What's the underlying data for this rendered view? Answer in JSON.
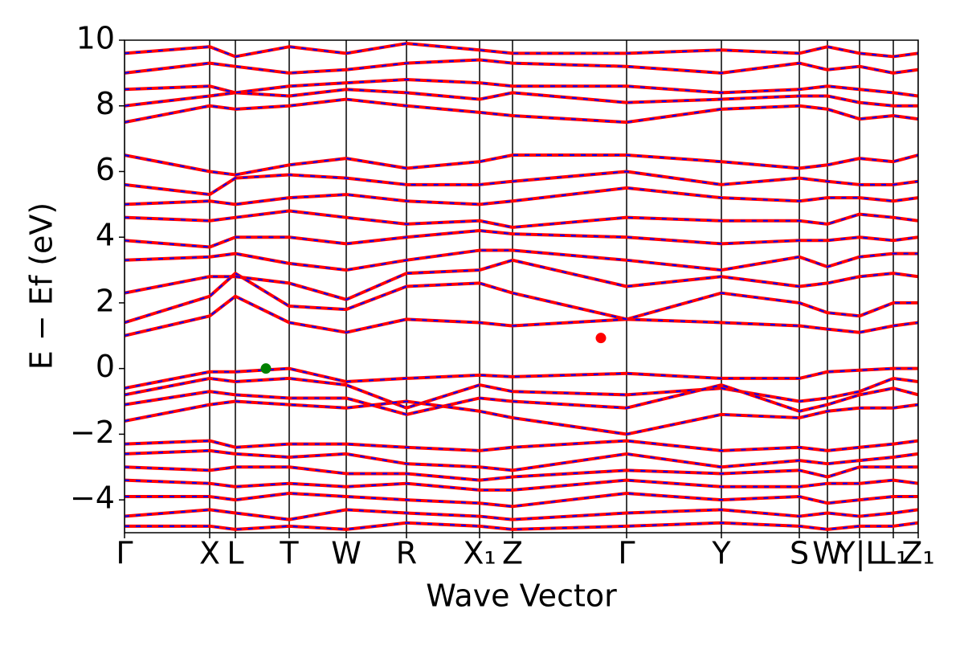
{
  "chart_data": {
    "type": "band_structure",
    "xlabel": "Wave Vector",
    "ylabel": "E − Ef (eV)",
    "xlim": [
      0,
      9.88
    ],
    "ylim": [
      -5,
      10
    ],
    "yticks": [
      {
        "value": -4,
        "label": "−4"
      },
      {
        "value": -2,
        "label": "−2"
      },
      0,
      2,
      4,
      6,
      8,
      10
    ],
    "xticks": [
      {
        "value": 0,
        "label": "Γ"
      },
      {
        "value": 1.06,
        "label": "X"
      },
      {
        "value": 1.38,
        "label": "L"
      },
      {
        "value": 2.05,
        "label": "T"
      },
      {
        "value": 2.76,
        "label": "W"
      },
      {
        "value": 3.51,
        "label": "R"
      },
      {
        "value": 4.42,
        "label": "X₁"
      },
      {
        "value": 4.83,
        "label": "Z"
      },
      {
        "value": 6.25,
        "label": "Γ"
      },
      {
        "value": 7.43,
        "label": "Y"
      },
      {
        "value": 8.4,
        "label": "S"
      },
      {
        "value": 8.75,
        "label": "W"
      },
      {
        "value": 9.15,
        "label": "Y|L"
      },
      {
        "value": 9.57,
        "label": "L₁"
      },
      {
        "value": 9.88,
        "label": "Z₁"
      }
    ],
    "line_color": "#ff0000",
    "dash_color": "#0000ff",
    "x": [
      0,
      1.06,
      1.38,
      2.05,
      2.76,
      3.51,
      4.42,
      4.83,
      6.25,
      7.43,
      8.4,
      8.75,
      9.15,
      9.57,
      9.88
    ],
    "bands": [
      [
        -0.6,
        -0.1,
        -0.1,
        0.0,
        -0.4,
        -0.3,
        -0.2,
        -0.25,
        -0.15,
        -0.3,
        -0.3,
        -0.1,
        -0.05,
        0,
        0
      ],
      [
        -0.8,
        -0.3,
        -0.4,
        -0.3,
        -0.5,
        -1.2,
        -0.5,
        -0.7,
        -0.8,
        -0.6,
        -1.0,
        -0.9,
        -0.7,
        -0.3,
        -0.4
      ],
      [
        -1.1,
        -0.7,
        -0.8,
        -0.9,
        -0.9,
        -1.4,
        -0.9,
        -1.0,
        -1.2,
        -0.5,
        -1.3,
        -1.1,
        -0.8,
        -0.6,
        -0.8
      ],
      [
        -1.6,
        -1.1,
        -1.0,
        -1.1,
        -1.2,
        -1.0,
        -1.3,
        -1.5,
        -2.0,
        -1.4,
        -1.5,
        -1.3,
        -1.2,
        -1.2,
        -1.1
      ],
      [
        -2.3,
        -2.2,
        -2.4,
        -2.3,
        -2.3,
        -2.4,
        -2.5,
        -2.4,
        -2.2,
        -2.5,
        -2.4,
        -2.5,
        -2.4,
        -2.3,
        -2.2
      ],
      [
        -2.6,
        -2.5,
        -2.6,
        -2.7,
        -2.6,
        -2.9,
        -3.0,
        -3.1,
        -2.6,
        -3.0,
        -2.8,
        -2.9,
        -2.8,
        -2.7,
        -2.6
      ],
      [
        -3.0,
        -3.1,
        -3.0,
        -3.0,
        -3.2,
        -3.2,
        -3.4,
        -3.3,
        -3.1,
        -3.2,
        -3.1,
        -3.3,
        -3.0,
        -3.0,
        -3.0
      ],
      [
        -3.4,
        -3.5,
        -3.6,
        -3.5,
        -3.6,
        -3.5,
        -3.7,
        -3.7,
        -3.4,
        -3.6,
        -3.6,
        -3.5,
        -3.5,
        -3.4,
        -3.5
      ],
      [
        -3.9,
        -3.9,
        -4.0,
        -3.8,
        -3.9,
        -4.0,
        -4.1,
        -4.2,
        -3.8,
        -4.0,
        -3.9,
        -4.1,
        -4.0,
        -3.9,
        -3.9
      ],
      [
        -4.5,
        -4.3,
        -4.4,
        -4.6,
        -4.3,
        -4.4,
        -4.5,
        -4.6,
        -4.4,
        -4.3,
        -4.5,
        -4.4,
        -4.5,
        -4.4,
        -4.3
      ],
      [
        -4.8,
        -4.8,
        -4.9,
        -4.8,
        -4.9,
        -4.7,
        -4.8,
        -4.9,
        -4.8,
        -4.7,
        -4.8,
        -4.9,
        -4.8,
        -4.8,
        -4.7
      ],
      [
        1.0,
        1.6,
        2.2,
        1.4,
        1.1,
        1.5,
        1.4,
        1.3,
        1.5,
        1.4,
        1.3,
        1.2,
        1.1,
        1.3,
        1.4
      ],
      [
        1.4,
        2.2,
        2.9,
        1.9,
        1.8,
        2.5,
        2.6,
        2.3,
        1.5,
        2.3,
        2.0,
        1.7,
        1.6,
        2.0,
        2.0
      ],
      [
        2.3,
        2.8,
        2.8,
        2.6,
        2.1,
        2.9,
        3.0,
        3.3,
        2.5,
        2.8,
        2.5,
        2.6,
        2.8,
        2.9,
        2.8
      ],
      [
        3.3,
        3.4,
        3.5,
        3.2,
        3.0,
        3.3,
        3.6,
        3.6,
        3.3,
        3.0,
        3.4,
        3.1,
        3.4,
        3.5,
        3.5
      ],
      [
        3.9,
        3.7,
        4.0,
        4.0,
        3.8,
        4.0,
        4.2,
        4.1,
        4.0,
        3.8,
        3.9,
        3.9,
        4.0,
        3.9,
        4.0
      ],
      [
        4.6,
        4.5,
        4.6,
        4.8,
        4.6,
        4.4,
        4.5,
        4.3,
        4.6,
        4.5,
        4.5,
        4.4,
        4.7,
        4.6,
        4.5
      ],
      [
        5.0,
        5.1,
        5.0,
        5.2,
        5.3,
        5.1,
        5.0,
        5.1,
        5.5,
        5.2,
        5.1,
        5.2,
        5.2,
        5.1,
        5.2
      ],
      [
        5.6,
        5.3,
        5.8,
        5.9,
        5.8,
        5.6,
        5.6,
        5.7,
        6.0,
        5.6,
        5.8,
        5.7,
        5.6,
        5.6,
        5.7
      ],
      [
        6.5,
        6.0,
        5.9,
        6.2,
        6.4,
        6.1,
        6.3,
        6.5,
        6.5,
        6.3,
        6.1,
        6.2,
        6.4,
        6.3,
        6.5
      ],
      [
        7.5,
        8.0,
        7.9,
        8.0,
        8.2,
        8.0,
        7.8,
        7.7,
        7.5,
        7.9,
        8.0,
        7.9,
        7.6,
        7.7,
        7.6
      ],
      [
        8.0,
        8.3,
        8.4,
        8.3,
        8.5,
        8.4,
        8.2,
        8.4,
        8.1,
        8.2,
        8.3,
        8.3,
        8.1,
        8.0,
        8.0
      ],
      [
        8.5,
        8.6,
        8.4,
        8.6,
        8.7,
        8.8,
        8.7,
        8.6,
        8.6,
        8.4,
        8.5,
        8.6,
        8.5,
        8.4,
        8.3
      ],
      [
        9.0,
        9.3,
        9.2,
        9.0,
        9.1,
        9.3,
        9.4,
        9.3,
        9.2,
        9.0,
        9.3,
        9.1,
        9.2,
        9.0,
        9.1
      ],
      [
        9.6,
        9.8,
        9.5,
        9.8,
        9.6,
        9.9,
        9.7,
        9.6,
        9.6,
        9.7,
        9.6,
        9.8,
        9.6,
        9.5,
        9.6
      ]
    ],
    "markers": [
      {
        "x": 1.76,
        "y": 0,
        "color": "#008000"
      },
      {
        "x": 5.93,
        "y": 0.93,
        "color": "#ff0000"
      }
    ]
  }
}
